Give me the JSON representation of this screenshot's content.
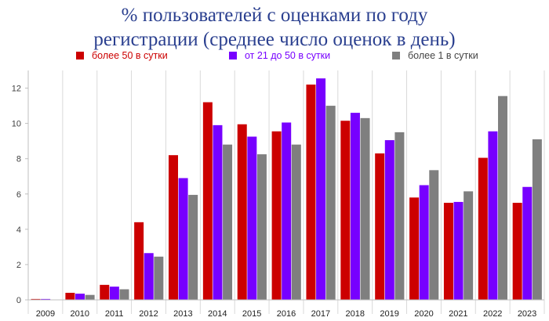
{
  "chart_data": {
    "type": "bar",
    "title_lines": [
      "% пользователей с оценками по году",
      "регистрации (среднее число оценок в день)"
    ],
    "categories": [
      "2009",
      "2010",
      "2011",
      "2012",
      "2013",
      "2014",
      "2015",
      "2016",
      "2017",
      "2018",
      "2019",
      "2020",
      "2021",
      "2022",
      "2023"
    ],
    "series": [
      {
        "name": "более 50 в сутки",
        "color": "#cc0000",
        "values": [
          0.05,
          0.4,
          0.85,
          4.4,
          8.2,
          11.2,
          9.95,
          9.55,
          12.2,
          10.15,
          8.3,
          5.8,
          5.5,
          8.05,
          5.5
        ]
      },
      {
        "name": "от 21 до 50 в сутки",
        "color": "#7700ff",
        "values": [
          0.05,
          0.35,
          0.75,
          2.65,
          6.9,
          9.9,
          9.25,
          10.05,
          12.55,
          10.6,
          9.05,
          6.5,
          5.55,
          9.55,
          6.4
        ]
      },
      {
        "name": "более 1 в сутки",
        "color": "#7f7f7f",
        "values": [
          0.02,
          0.28,
          0.6,
          2.45,
          5.95,
          8.8,
          8.25,
          8.8,
          11.0,
          10.3,
          9.5,
          7.35,
          6.15,
          11.55,
          9.1
        ]
      }
    ],
    "y_ticks": [
      "0",
      "2",
      "4",
      "6",
      "8",
      "10",
      "12"
    ],
    "ylim": [
      0,
      13
    ],
    "grid": "vertical between categories",
    "legend_position": "top"
  }
}
